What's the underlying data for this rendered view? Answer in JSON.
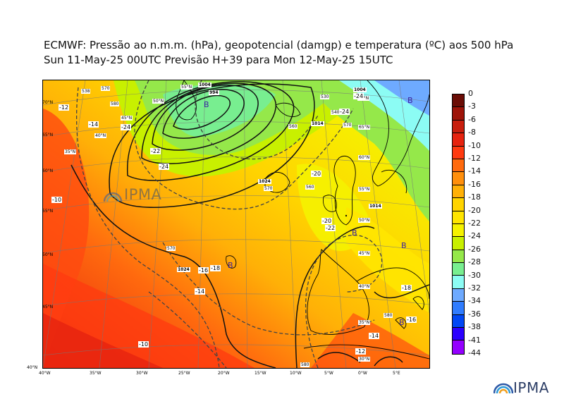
{
  "header": {
    "line1": "ECMWF:  Pressão ao n.m.m. (hPa), geopotencial (damgp) e temperatura (ºC) aos 500 hPa",
    "line2": "Sun 11-May-25 00UTC Previsão H+39 para Mon 12-May-25 15UTC"
  },
  "map": {
    "lat_labels": [
      "70°N",
      "65°N",
      "60°N",
      "55°N",
      "50°N",
      "45°N",
      "40°N"
    ],
    "lon_labels": [
      "40°W",
      "35°W",
      "30°W",
      "25°W",
      "20°W",
      "15°W",
      "10°W",
      "5°W",
      "0°W",
      "5°E"
    ],
    "grid_labels": [
      "55°N",
      "70°N",
      "65°N",
      "60°N",
      "55°N",
      "50°N",
      "45°N",
      "40°N",
      "35°N",
      "30°N",
      "35°N",
      "40°N",
      "45°N",
      "50°N"
    ],
    "pressure_labels": [
      "1004",
      "994",
      "1014",
      "1024",
      "1004",
      "1024",
      "1014"
    ],
    "temperature_labels": [
      "-12",
      "-14",
      "-24",
      "-22",
      "-24",
      "-10",
      "-16",
      "-18",
      "-14",
      "-10",
      "-20",
      "-20",
      "-22",
      "-18",
      "-16",
      "-14",
      "-12",
      "-24",
      "-24"
    ],
    "geopotential_labels": [
      "538",
      "570",
      "570",
      "560",
      "570",
      "560",
      "580",
      "580",
      "530",
      "540",
      "570",
      "580"
    ],
    "pressure_centers": [
      "B",
      "B",
      "B",
      "B",
      "B",
      "B"
    ]
  },
  "colorbar": {
    "labels": [
      "0",
      "-3",
      "-6",
      "-8",
      "-10",
      "-12",
      "-14",
      "-16",
      "-18",
      "-20",
      "-22",
      "-24",
      "-26",
      "-28",
      "-30",
      "-32",
      "-34",
      "-36",
      "-38",
      "-41",
      "-44"
    ],
    "colors": [
      "#6b0d06",
      "#9e1409",
      "#c81e0d",
      "#e6230f",
      "#ff3a10",
      "#ff6a0e",
      "#ff8f0c",
      "#ffb007",
      "#ffd400",
      "#ffe500",
      "#f5f200",
      "#c8f000",
      "#95e84a",
      "#78ee90",
      "#8cfcf4",
      "#6eaaff",
      "#2f7cff",
      "#0047f5",
      "#2a00ff",
      "#9400ff",
      "#e800ff"
    ]
  },
  "logo": {
    "text": "IPMA"
  }
}
